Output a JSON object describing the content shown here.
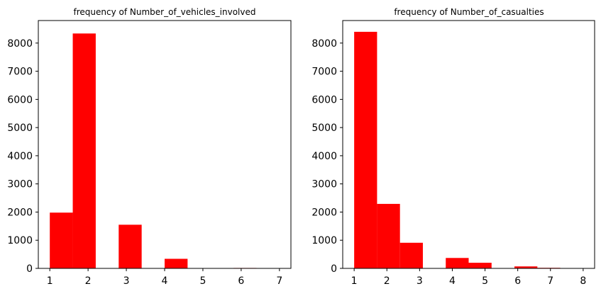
{
  "chart_data": [
    {
      "type": "bar",
      "title": "frequency of Number_of_vehicles_involved",
      "xlabel": "",
      "ylabel": "",
      "xlim": [
        0.7,
        7.3
      ],
      "ylim": [
        0,
        8800
      ],
      "xticks": [
        1,
        2,
        3,
        4,
        5,
        6,
        7
      ],
      "yticks": [
        0,
        1000,
        2000,
        3000,
        4000,
        5000,
        6000,
        7000,
        8000
      ],
      "bins": [
        {
          "x0": 1.0,
          "x1": 1.6,
          "value": 1980
        },
        {
          "x0": 1.6,
          "x1": 2.2,
          "value": 8340
        },
        {
          "x0": 2.2,
          "x1": 2.8,
          "value": 0
        },
        {
          "x0": 2.8,
          "x1": 3.4,
          "value": 1550
        },
        {
          "x0": 3.4,
          "x1": 4.0,
          "value": 0
        },
        {
          "x0": 4.0,
          "x1": 4.6,
          "value": 340
        },
        {
          "x0": 4.6,
          "x1": 5.2,
          "value": 5
        },
        {
          "x0": 5.2,
          "x1": 5.8,
          "value": 0
        },
        {
          "x0": 5.8,
          "x1": 6.4,
          "value": 15
        },
        {
          "x0": 6.4,
          "x1": 7.0,
          "value": 2
        }
      ],
      "color": "#ff0000",
      "grid": false
    },
    {
      "type": "bar",
      "title": "frequency of Number_of_casualties",
      "xlabel": "",
      "ylabel": "",
      "xlim": [
        0.65,
        8.35
      ],
      "ylim": [
        0,
        8800
      ],
      "xticks": [
        1,
        2,
        3,
        4,
        5,
        6,
        7,
        8
      ],
      "yticks": [
        0,
        1000,
        2000,
        3000,
        4000,
        5000,
        6000,
        7000,
        8000
      ],
      "bins": [
        {
          "x0": 1.0,
          "x1": 1.7,
          "value": 8400
        },
        {
          "x0": 1.7,
          "x1": 2.4,
          "value": 2290
        },
        {
          "x0": 2.4,
          "x1": 3.1,
          "value": 910
        },
        {
          "x0": 3.1,
          "x1": 3.8,
          "value": 0
        },
        {
          "x0": 3.8,
          "x1": 4.5,
          "value": 370
        },
        {
          "x0": 4.5,
          "x1": 5.2,
          "value": 200
        },
        {
          "x0": 5.2,
          "x1": 5.9,
          "value": 0
        },
        {
          "x0": 5.9,
          "x1": 6.6,
          "value": 70
        },
        {
          "x0": 6.6,
          "x1": 7.3,
          "value": 20
        },
        {
          "x0": 7.3,
          "x1": 8.0,
          "value": 5
        }
      ],
      "color": "#ff0000",
      "grid": false
    }
  ]
}
